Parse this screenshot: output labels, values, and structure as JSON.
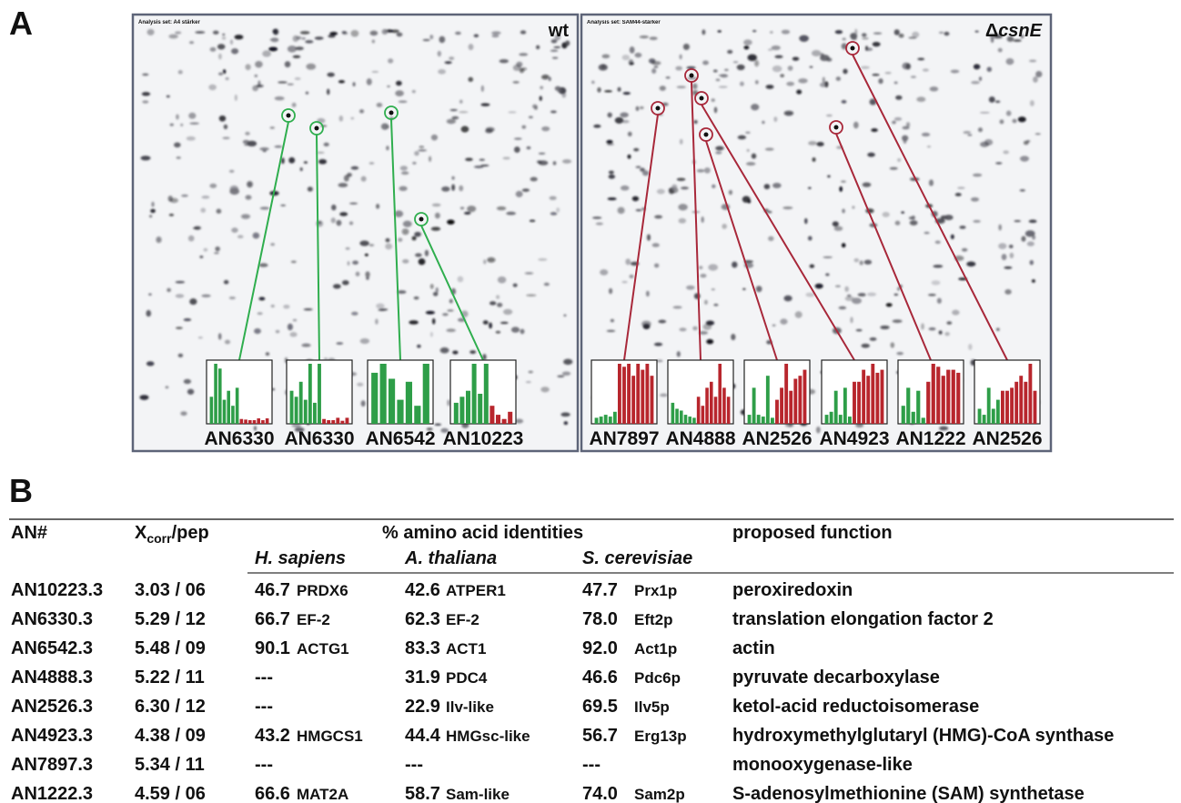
{
  "panel_a": {
    "label": "A",
    "green_color": "#2e9e48",
    "red_color": "#b8262d",
    "gels": [
      {
        "title": "wt",
        "analysis_set": "Analysis set: A4 stärker",
        "marker_color": "#2fae4e",
        "insets": [
          {
            "label": "AN6330",
            "green": [
              45,
              100,
              92,
              40,
              55,
              30,
              60
            ],
            "red": [
              8,
              7,
              6,
              6,
              9,
              6,
              9
            ]
          },
          {
            "label": "AN6330",
            "green": [
              55,
              45,
              70,
              40,
              100,
              35,
              100
            ],
            "red": [
              8,
              6,
              6,
              10,
              5,
              10
            ]
          },
          {
            "label": "AN6542",
            "green": [
              85,
              100,
              75,
              40,
              70,
              30,
              100
            ],
            "red": []
          },
          {
            "label": "AN10223",
            "green": [
              35,
              45,
              55,
              100,
              50,
              100
            ],
            "red": [
              30,
              15,
              8,
              20
            ]
          }
        ]
      },
      {
        "title_symbol": "Δ",
        "title": "csnE",
        "analysis_set": "Analysis set: SAM44-stärker",
        "marker_color": "#a8283a",
        "insets": [
          {
            "label": "AN7897",
            "green": [
              10,
              12,
              15,
              12,
              20
            ],
            "red": [
              100,
              95,
              100,
              80,
              100,
              90,
              100,
              80
            ]
          },
          {
            "label": "AN4888",
            "green": [
              35,
              25,
              22,
              15,
              12,
              10
            ],
            "red": [
              45,
              30,
              60,
              70,
              45,
              100,
              60,
              45
            ]
          },
          {
            "label": "AN2526",
            "green": [
              15,
              60,
              15,
              12,
              80,
              10
            ],
            "red": [
              40,
              60,
              100,
              55,
              75,
              80,
              90
            ]
          },
          {
            "label": "AN4923",
            "green": [
              15,
              20,
              55,
              15,
              60,
              12
            ],
            "red": [
              70,
              70,
              90,
              80,
              100,
              85,
              90
            ]
          },
          {
            "label": "AN1222",
            "green": [
              30,
              60,
              20,
              55,
              10
            ],
            "red": [
              70,
              100,
              95,
              80,
              90,
              90,
              85
            ]
          },
          {
            "label": "AN2526",
            "green": [
              25,
              15,
              60,
              25,
              40
            ],
            "red": [
              55,
              55,
              60,
              70,
              80,
              70,
              100,
              55
            ]
          }
        ]
      }
    ]
  },
  "panel_b": {
    "label": "B",
    "header": {
      "an": "AN#",
      "xcorr": {
        "main": "X",
        "sub": "corr",
        "rest": "/pep"
      },
      "identities": "% amino acid identities",
      "function": "proposed function",
      "species": [
        "H. sapiens",
        "A. thaliana",
        "S. cerevisiae"
      ]
    },
    "rows": [
      {
        "an": "AN10223.3",
        "color": "#24a04a",
        "xcorr": "3.03 / 06",
        "identities": [
          {
            "pct": "46.7",
            "name": "PRDX6"
          },
          {
            "pct": "42.6",
            "name": "ATPER1"
          },
          {
            "pct": "47.7",
            "name": "Prx1p"
          }
        ],
        "function": "peroxiredoxin"
      },
      {
        "an": "AN6330.3",
        "color": "#24a04a",
        "xcorr": "5.29 / 12",
        "identities": [
          {
            "pct": "66.7",
            "name": "EF-2"
          },
          {
            "pct": "62.3",
            "name": "EF-2"
          },
          {
            "pct": "78.0",
            "name": "Eft2p"
          }
        ],
        "function": "translation elongation factor 2"
      },
      {
        "an": "AN6542.3",
        "color": "#24a04a",
        "xcorr": "5.48 / 09",
        "identities": [
          {
            "pct": "90.1",
            "name": "ACTG1"
          },
          {
            "pct": "83.3",
            "name": "ACT1"
          },
          {
            "pct": "92.0",
            "name": "Act1p"
          }
        ],
        "function": "actin"
      },
      {
        "an": "AN4888.3",
        "color": "#b03a2e",
        "xcorr": "5.22 / 11",
        "identities": [
          {
            "pct": "---"
          },
          {
            "pct": "31.9",
            "name": "PDC4"
          },
          {
            "pct": "46.6",
            "name": "Pdc6p"
          }
        ],
        "function": "pyruvate decarboxylase"
      },
      {
        "an": "AN2526.3",
        "color": "#b03a2e",
        "xcorr": "6.30 / 12",
        "identities": [
          {
            "pct": "---"
          },
          {
            "pct": "22.9",
            "name": "Ilv-like"
          },
          {
            "pct": "69.5",
            "name": "Ilv5p"
          }
        ],
        "function": "ketol-acid reductoisomerase"
      },
      {
        "an": "AN4923.3",
        "color": "#b03a2e",
        "xcorr": "4.38 / 09",
        "identities": [
          {
            "pct": "43.2",
            "name": "HMGCS1"
          },
          {
            "pct": "44.4",
            "name": "HMGsc-like"
          },
          {
            "pct": "56.7",
            "name": "Erg13p"
          }
        ],
        "function": "hydroxymethylglutaryl (HMG)-CoA synthase"
      },
      {
        "an": "AN7897.3",
        "color": "#b03a2e",
        "xcorr": "5.34 / 11",
        "identities": [
          {
            "pct": "---"
          },
          {
            "pct": "---"
          },
          {
            "pct": "---"
          }
        ],
        "function": "monooxygenase-like"
      },
      {
        "an": "AN1222.3",
        "color": "#b03a2e",
        "xcorr": "4.59 / 06",
        "identities": [
          {
            "pct": "66.6",
            "name": "MAT2A"
          },
          {
            "pct": "58.7",
            "name": "Sam-like"
          },
          {
            "pct": "74.0",
            "name": "Sam2p"
          }
        ],
        "function": "S-adenosylmethionine (SAM) synthetase"
      }
    ]
  }
}
